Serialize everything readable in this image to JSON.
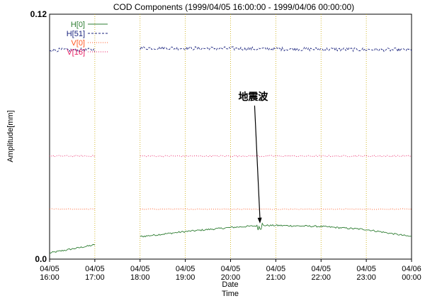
{
  "chart_data": {
    "type": "line",
    "title": "COD Components (1999/04/05 16:00:00 - 1999/04/06 00:00:00)",
    "xlabel": [
      "Date",
      "Time"
    ],
    "ylabel": "Amplitude[mm]",
    "ylim": [
      0.0,
      0.12
    ],
    "y_ticks": [
      {
        "value": 0.0,
        "label": "0.0"
      },
      {
        "value": 0.12,
        "label": "0.12"
      }
    ],
    "xlim_hours": [
      16,
      24
    ],
    "x_ticks": [
      {
        "hour": 16,
        "date": "04/05",
        "time": "16:00"
      },
      {
        "hour": 17,
        "date": "04/05",
        "time": "17:00"
      },
      {
        "hour": 18,
        "date": "04/05",
        "time": "18:00"
      },
      {
        "hour": 19,
        "date": "04/05",
        "time": "19:00"
      },
      {
        "hour": 20,
        "date": "04/05",
        "time": "20:00"
      },
      {
        "hour": 21,
        "date": "04/05",
        "time": "21:00"
      },
      {
        "hour": 22,
        "date": "04/05",
        "time": "22:00"
      },
      {
        "hour": 23,
        "date": "04/05",
        "time": "23:00"
      },
      {
        "hour": 24,
        "date": "04/06",
        "time": "00:00"
      }
    ],
    "grid": {
      "vertical": true,
      "horizontal": false
    },
    "legend_position": "top-left",
    "series": [
      {
        "name": "H[0]",
        "color": "#2e7d32",
        "style": "solid",
        "points": [
          [
            16.0,
            0.003
          ],
          [
            17.0,
            0.007
          ],
          [
            17.0,
            null
          ],
          [
            18.0,
            0.011
          ],
          [
            19.0,
            0.0135
          ],
          [
            20.0,
            0.0155
          ],
          [
            20.7,
            0.0165
          ],
          [
            21.0,
            0.0165
          ],
          [
            22.0,
            0.016
          ],
          [
            23.0,
            0.0145
          ],
          [
            24.0,
            0.011
          ]
        ],
        "noise": 0.0004,
        "burst": {
          "hour": 20.65,
          "amplitude": 0.002
        }
      },
      {
        "name": "H[51]",
        "color": "#1a237e",
        "style": "dashed",
        "points": [
          [
            16.0,
            0.1025
          ],
          [
            17.0,
            0.1025
          ],
          [
            17.0,
            null
          ],
          [
            18.0,
            0.1035
          ],
          [
            24.0,
            0.1025
          ]
        ],
        "noise": 0.0009
      },
      {
        "name": "V[0]",
        "color": "#ff5722",
        "style": "dotted",
        "points": [
          [
            16.0,
            0.0245
          ],
          [
            17.0,
            0.0245
          ],
          [
            17.0,
            null
          ],
          [
            18.0,
            0.0245
          ],
          [
            24.0,
            0.0245
          ]
        ],
        "noise": 0.0002
      },
      {
        "name": "V[16]",
        "color": "#e91e63",
        "style": "dotted",
        "points": [
          [
            16.0,
            0.0505
          ],
          [
            17.0,
            0.0505
          ],
          [
            17.0,
            null
          ],
          [
            18.0,
            0.0505
          ],
          [
            24.0,
            0.0505
          ]
        ],
        "noise": 0.00035
      }
    ],
    "annotation": {
      "text": "地震波",
      "points_to_hour": 20.65,
      "points_to_value": 0.0175,
      "label_hour": 20.5,
      "label_value": 0.078
    }
  }
}
